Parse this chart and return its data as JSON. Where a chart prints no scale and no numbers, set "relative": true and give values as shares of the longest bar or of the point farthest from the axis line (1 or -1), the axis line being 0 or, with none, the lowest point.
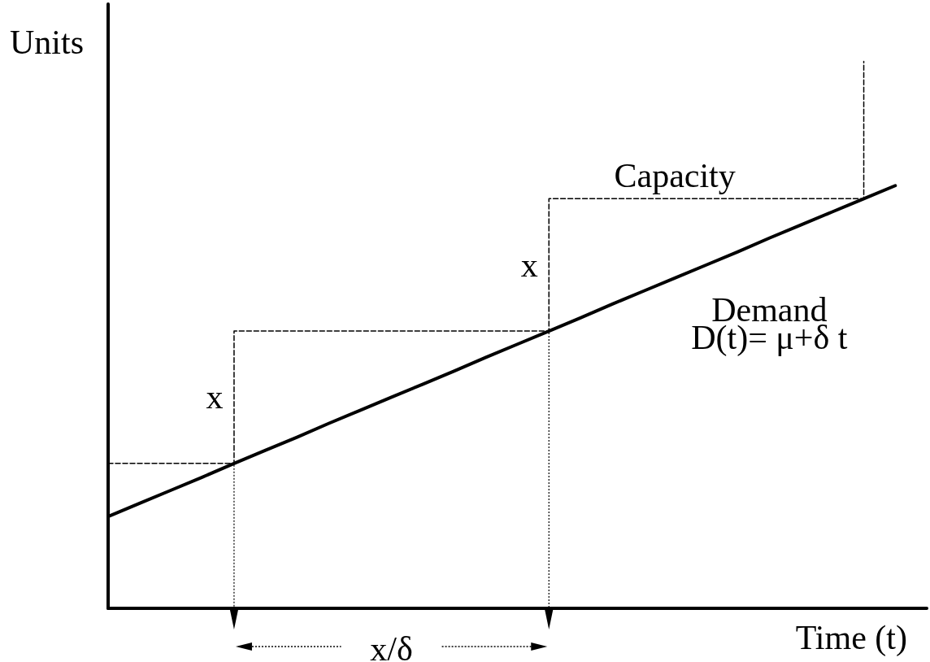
{
  "chart_data": {
    "type": "line",
    "relative": true,
    "xlabel": "Time (t)",
    "ylabel": "Units",
    "tick_labels": false,
    "categories": [
      null,
      null,
      null,
      null,
      null,
      null,
      null,
      null,
      null,
      null,
      null,
      null,
      null,
      null,
      null,
      null,
      null,
      null,
      null,
      null,
      null,
      null,
      null,
      null,
      null,
      null,
      null
    ],
    "series": [
      {
        "name": "Capacity",
        "type": "step",
        "line_style": "dashed",
        "color": "#000000",
        "values": [
          0.265,
          0.265,
          0.265,
          0.265,
          0.507,
          0.507,
          0.507,
          0.507,
          0.507,
          0.507,
          0.507,
          0.507,
          0.507,
          0.507,
          0.749,
          0.749,
          0.749,
          0.749,
          0.749,
          0.749,
          0.749,
          0.749,
          0.749,
          0.749,
          1.0,
          null,
          null
        ]
      },
      {
        "name": "Demand",
        "type": "line",
        "line_style": "solid",
        "color": "#000000",
        "values": [
          0.168,
          0.192,
          0.216,
          0.24,
          0.265,
          0.289,
          0.313,
          0.338,
          0.362,
          0.386,
          0.41,
          0.434,
          0.459,
          0.483,
          0.507,
          0.531,
          0.556,
          0.58,
          0.604,
          0.628,
          0.652,
          0.677,
          0.701,
          0.725,
          0.749,
          0.773,
          null
        ]
      }
    ],
    "annotations": [
      "D(t)= μ+δ t",
      "x",
      "x",
      "x/δ"
    ]
  }
}
